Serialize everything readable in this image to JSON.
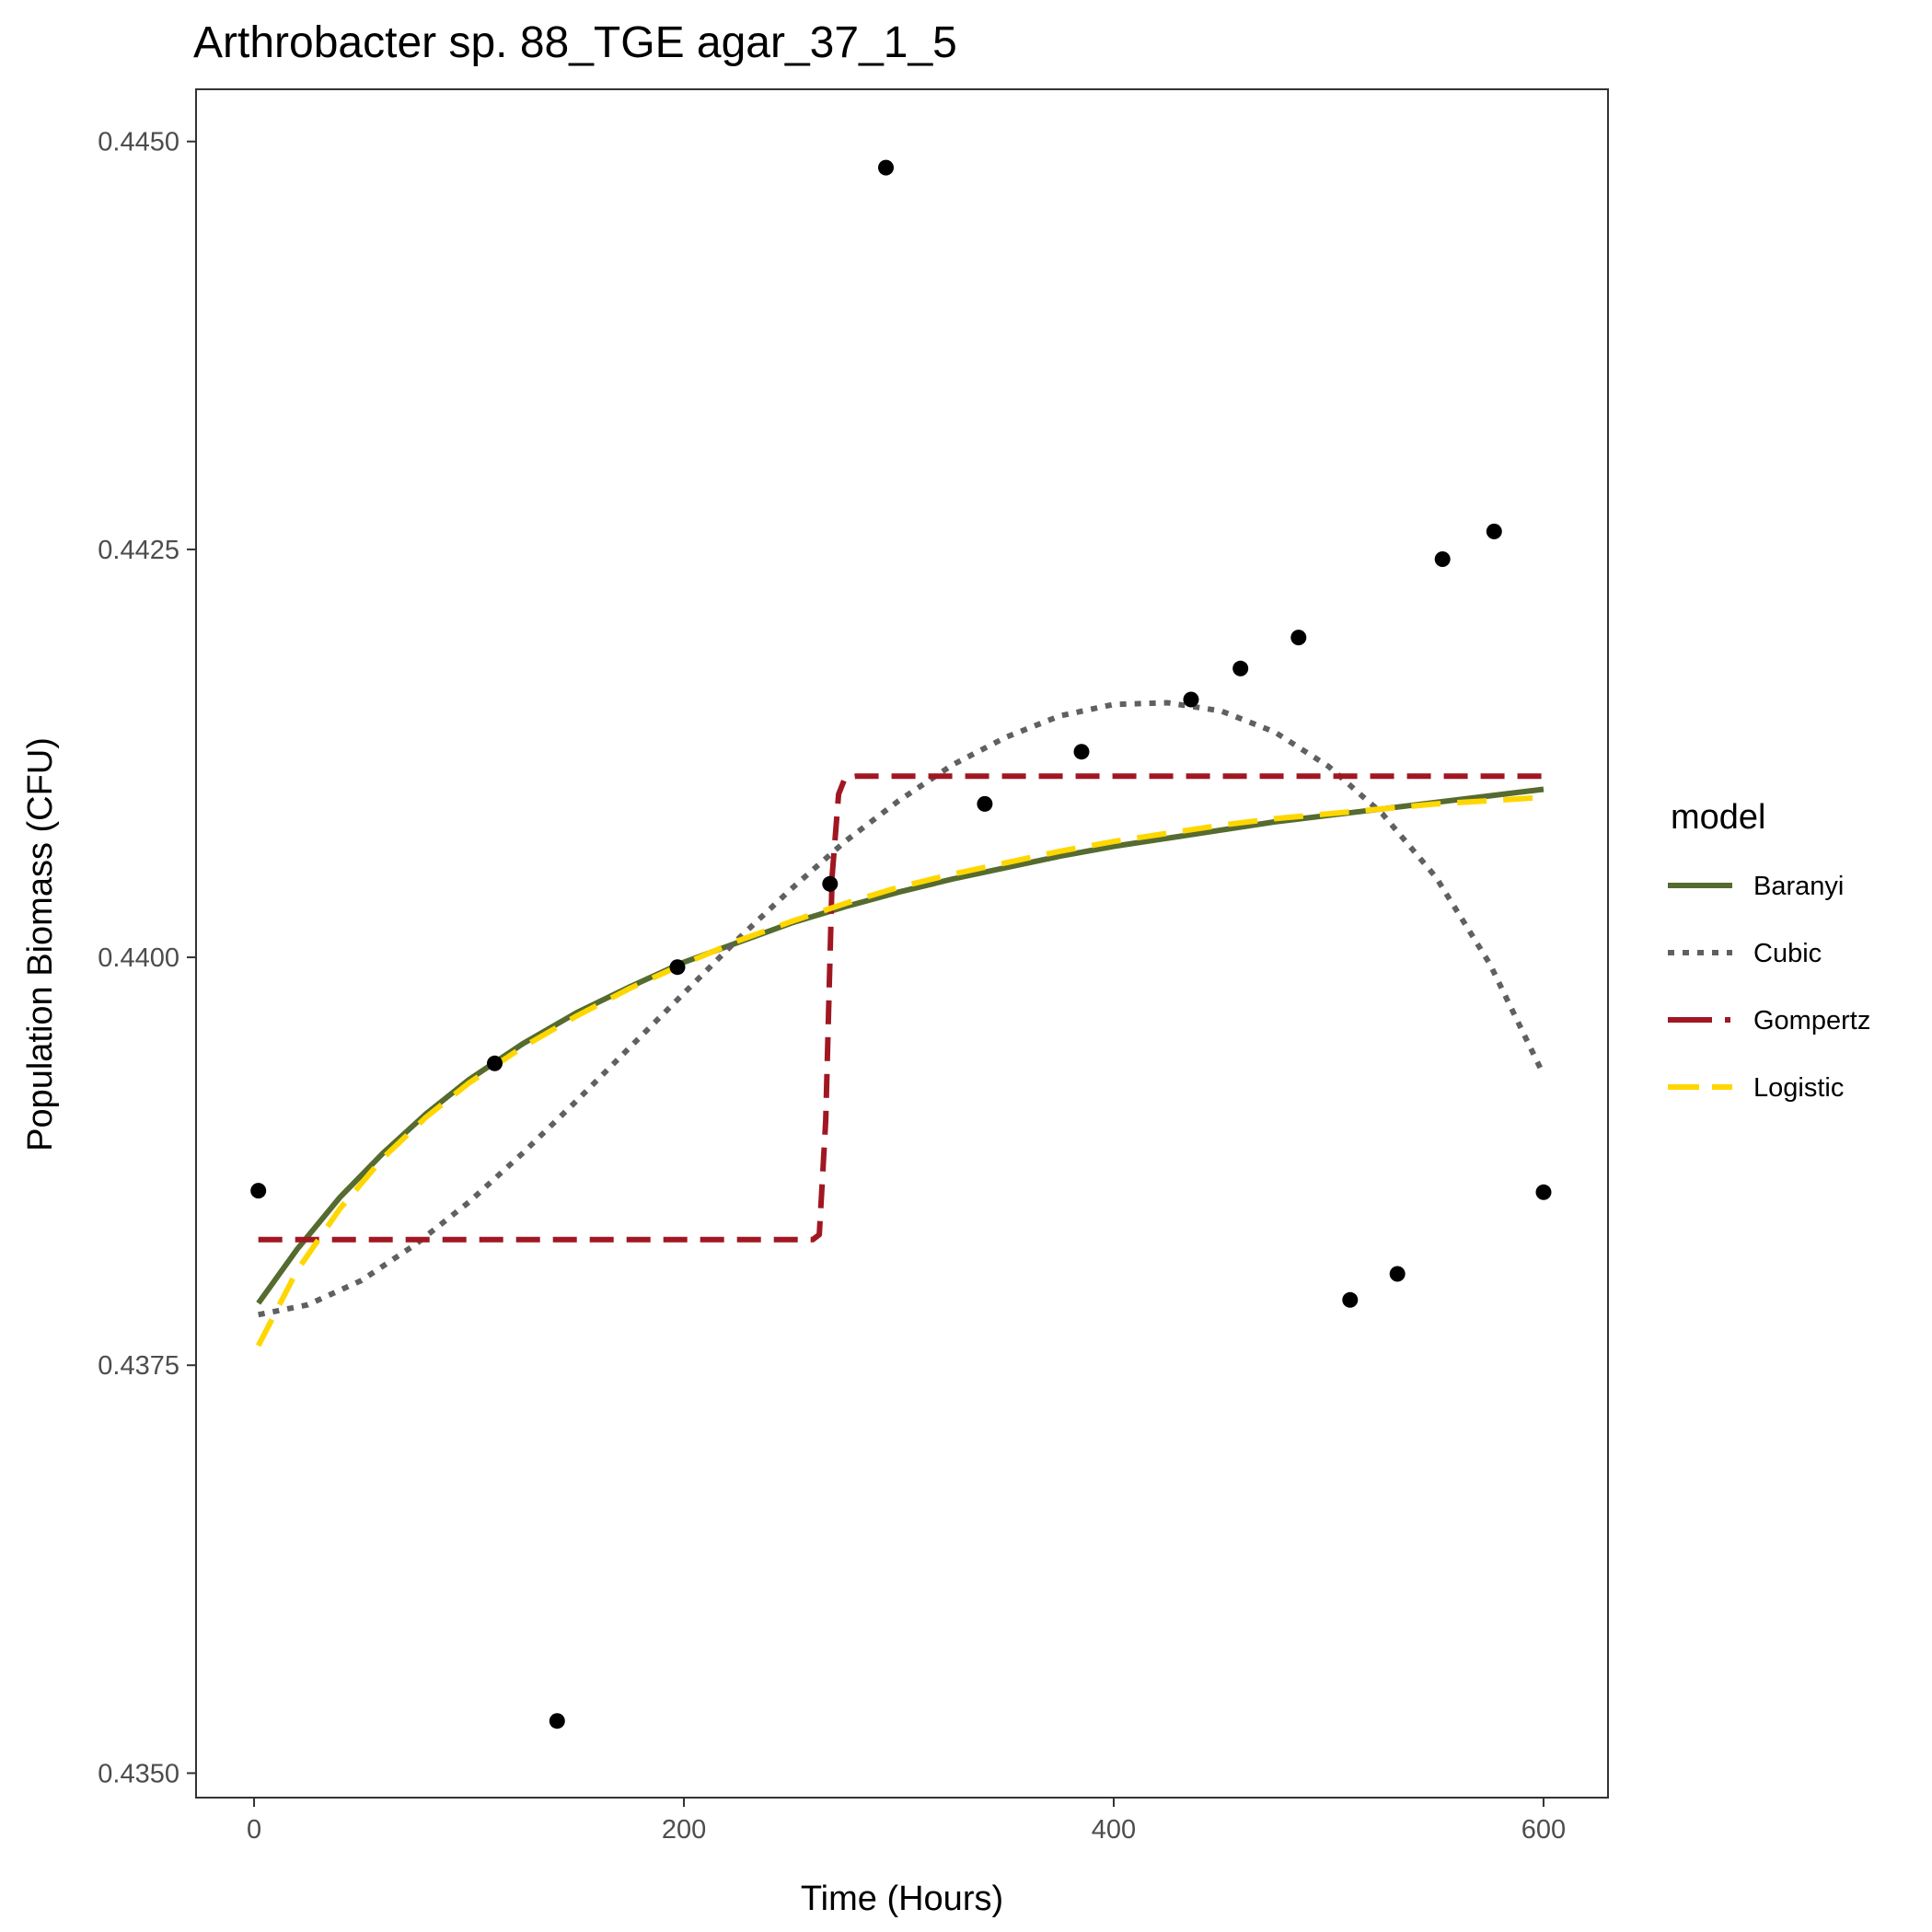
{
  "chart_data": {
    "type": "line",
    "title": "Arthrobacter sp. 88_TGE agar_37_1_5",
    "xlabel": "Time (Hours)",
    "ylabel": "Population Biomass (CFU)",
    "xlim": [
      -27,
      630
    ],
    "ylim": [
      0.43485,
      0.44532
    ],
    "x_ticks": [
      0,
      200,
      400,
      600
    ],
    "x_tick_labels": [
      "0",
      "200",
      "400",
      "600"
    ],
    "y_ticks": [
      0.435,
      0.4375,
      0.44,
      0.4425,
      0.445
    ],
    "y_tick_labels": [
      "0.4350",
      "0.4375",
      "0.4400",
      "0.4425",
      "0.4450"
    ],
    "grid": false,
    "legend_title": "model",
    "legend_position": "right",
    "points": {
      "x": [
        2,
        112,
        141,
        197,
        268,
        294,
        340,
        385,
        436,
        459,
        486,
        510,
        532,
        553,
        577,
        600
      ],
      "y": [
        0.43857,
        0.43935,
        0.43532,
        0.43994,
        0.44045,
        0.44484,
        0.44094,
        0.44126,
        0.44158,
        0.44177,
        0.44196,
        0.4379,
        0.43806,
        0.44244,
        0.44261,
        0.43856
      ]
    },
    "series": [
      {
        "name": "Baranyi",
        "color": "#556B2F",
        "dash": "solid",
        "x": [
          2,
          20,
          40,
          60,
          80,
          100,
          125,
          150,
          175,
          200,
          225,
          250,
          275,
          300,
          325,
          350,
          375,
          400,
          425,
          450,
          475,
          500,
          525,
          550,
          575,
          600
        ],
        "y": [
          0.43788,
          0.43821,
          0.43853,
          0.4388,
          0.43904,
          0.43925,
          0.43947,
          0.43966,
          0.43982,
          0.43997,
          0.44009,
          0.44021,
          0.44031,
          0.4404,
          0.44048,
          0.44055,
          0.44062,
          0.44068,
          0.44073,
          0.44078,
          0.44083,
          0.44087,
          0.44091,
          0.44095,
          0.44099,
          0.44103
        ]
      },
      {
        "name": "Cubic",
        "color": "#606060",
        "dash": "dotted",
        "x": [
          2,
          25,
          50,
          75,
          100,
          125,
          150,
          175,
          200,
          225,
          250,
          275,
          300,
          325,
          350,
          375,
          400,
          425,
          450,
          475,
          500,
          525,
          550,
          575,
          600
        ],
        "y": [
          0.43781,
          0.43787,
          0.43802,
          0.43824,
          0.4385,
          0.4388,
          0.43912,
          0.43945,
          0.43978,
          0.44011,
          0.44042,
          0.44071,
          0.44096,
          0.44118,
          0.44135,
          0.44148,
          0.44155,
          0.44156,
          0.44151,
          0.44138,
          0.44117,
          0.44088,
          0.44049,
          0.43996,
          0.43928
        ]
      },
      {
        "name": "Gompertz",
        "color": "#A01722",
        "dash": "dashed",
        "x": [
          2,
          100,
          200,
          260,
          263,
          266,
          269,
          272,
          275,
          280,
          350,
          450,
          600
        ],
        "y": [
          0.43827,
          0.43827,
          0.43827,
          0.43827,
          0.4383,
          0.439,
          0.4405,
          0.441,
          0.4411,
          0.44111,
          0.44111,
          0.44111,
          0.44111
        ]
      },
      {
        "name": "Logistic",
        "color": "#FFD700",
        "dash": "longdash",
        "x": [
          2,
          20,
          40,
          60,
          80,
          100,
          125,
          150,
          175,
          200,
          225,
          250,
          275,
          300,
          325,
          350,
          375,
          400,
          425,
          450,
          475,
          500,
          525,
          550,
          575,
          600
        ],
        "y": [
          0.43762,
          0.43808,
          0.43846,
          0.43877,
          0.43902,
          0.43923,
          0.43945,
          0.43964,
          0.43981,
          0.43996,
          0.4401,
          0.44022,
          0.44033,
          0.44043,
          0.44051,
          0.44058,
          0.44065,
          0.44071,
          0.44076,
          0.44081,
          0.44085,
          0.44088,
          0.44091,
          0.44094,
          0.44096,
          0.44098
        ]
      }
    ]
  }
}
